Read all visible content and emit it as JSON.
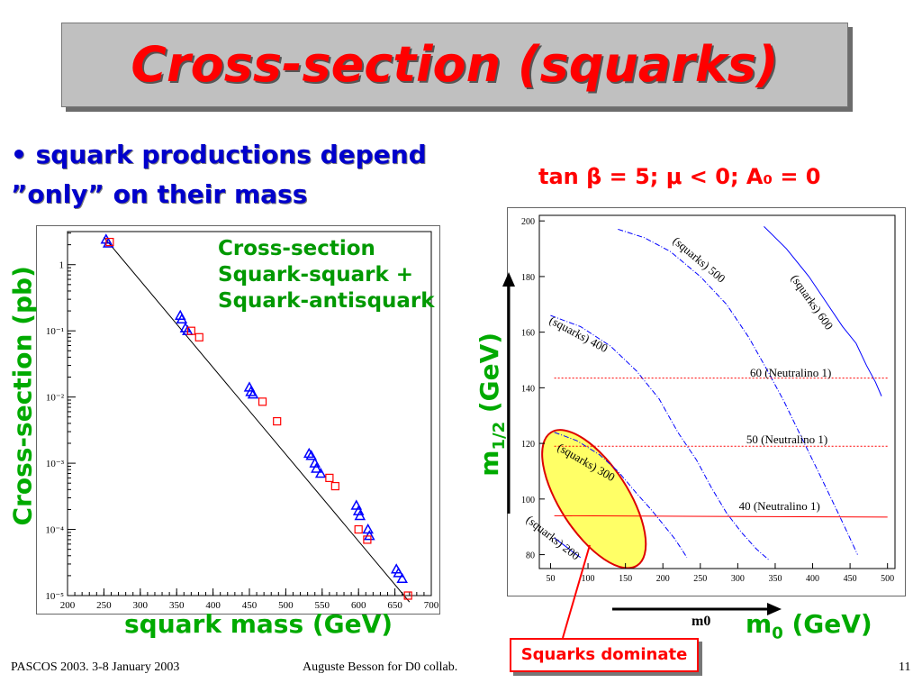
{
  "slide": {
    "title": "Cross-section (squarks)",
    "bullet_line1": "• squark productions depend",
    "bullet_line2": "”only” on their mass",
    "params": "tan β = 5; μ < 0; A₀ = 0",
    "left_legend": [
      "Cross-section",
      "Squark-squark +",
      "Squark-antisquark"
    ],
    "left_ylabel": "Cross-section (pb)",
    "left_xlabel": "squark mass (GeV)",
    "right_ylabel": "m1/2 (GeV)",
    "right_xlabel_small": "m0",
    "right_xlabel_big": "m0 (GeV)",
    "callout": "Squarks dominate",
    "footer_left": "PASCOS 2003. 3-8 January 2003",
    "footer_center": "Auguste Besson for D0 collab.",
    "page_number": "11"
  },
  "colors": {
    "title": "#ff0000",
    "bullet": "#0000cc",
    "legend": "#009900",
    "squark_points": "#0000ff",
    "antisquark_points": "#ff0000",
    "ellipse_fill": "#ffff66"
  },
  "chart_data": [
    {
      "type": "scatter",
      "xlim": [
        200,
        700
      ],
      "ylim_log": [
        -5,
        0.5
      ],
      "x_ticks": [
        200,
        250,
        300,
        350,
        400,
        450,
        500,
        550,
        600,
        650,
        700
      ],
      "y_ticks": [
        {
          "exp": 0,
          "label": "1"
        },
        {
          "exp": -1,
          "label": "10⁻¹"
        },
        {
          "exp": -2,
          "label": "10⁻²"
        },
        {
          "exp": -3,
          "label": "10⁻³"
        },
        {
          "exp": -4,
          "label": "10⁻⁴"
        },
        {
          "exp": -5,
          "label": "10⁻⁵"
        }
      ],
      "fit_line": [
        [
          250,
          2.6
        ],
        [
          670,
          8e-06
        ]
      ],
      "series": [
        {
          "marker": "triangle",
          "points": [
            [
              253,
              2.4
            ],
            [
              256,
              2.1
            ],
            [
              355,
              0.17
            ],
            [
              357,
              0.15
            ],
            [
              362,
              0.11
            ],
            [
              365,
              0.1
            ],
            [
              450,
              0.014
            ],
            [
              452,
              0.012
            ],
            [
              455,
              0.011
            ],
            [
              532,
              0.0014
            ],
            [
              535,
              0.0013
            ],
            [
              540,
              0.001
            ],
            [
              542,
              0.00083
            ],
            [
              548,
              0.0007
            ],
            [
              597,
              0.00023
            ],
            [
              600,
              0.00019
            ],
            [
              602,
              0.00016
            ],
            [
              613,
              0.0001
            ],
            [
              615,
              8e-05
            ],
            [
              652,
              2.5e-05
            ],
            [
              655,
              2.2e-05
            ],
            [
              660,
              1.8e-05
            ]
          ]
        },
        {
          "marker": "square",
          "points": [
            [
              258,
              2.2
            ],
            [
              370,
              0.1
            ],
            [
              381,
              0.08
            ],
            [
              468,
              0.0085
            ],
            [
              488,
              0.0043
            ],
            [
              560,
              0.0006
            ],
            [
              568,
              0.00045
            ],
            [
              600,
              0.0001
            ],
            [
              612,
              7e-05
            ],
            [
              668,
              1e-05
            ]
          ]
        }
      ]
    },
    {
      "type": "line",
      "xlim": [
        35,
        510
      ],
      "ylim": [
        75,
        202
      ],
      "x_ticks": [
        50,
        100,
        150,
        200,
        250,
        300,
        350,
        400,
        450,
        500
      ],
      "y_ticks": [
        80,
        100,
        120,
        140,
        160,
        180,
        200
      ],
      "series": [
        {
          "name": "(squarks) 600",
          "style": "solid",
          "points": [
            [
              335,
              198
            ],
            [
              365,
              190
            ],
            [
              395,
              180
            ],
            [
              420,
              170
            ],
            [
              440,
              162
            ],
            [
              458,
              156
            ],
            [
              472,
              148
            ],
            [
              484,
              142
            ],
            [
              492,
              137
            ]
          ]
        },
        {
          "name": "(squarks) 500",
          "style": "dashdot",
          "points": [
            [
              140,
              197
            ],
            [
              175,
              194
            ],
            [
              210,
              189
            ],
            [
              250,
              180
            ],
            [
              285,
              170
            ],
            [
              315,
              158
            ],
            [
              340,
              146
            ],
            [
              362,
              135
            ],
            [
              380,
              125
            ],
            [
              400,
              114
            ],
            [
              418,
              104
            ],
            [
              434,
              95
            ],
            [
              448,
              87
            ],
            [
              460,
              80
            ]
          ]
        },
        {
          "name": "(squarks) 400",
          "style": "dashdot",
          "points": [
            [
              50,
              166
            ],
            [
              90,
              162
            ],
            [
              130,
              155
            ],
            [
              165,
              146
            ],
            [
              195,
              136
            ],
            [
              220,
              124
            ],
            [
              245,
              114
            ],
            [
              265,
              104
            ],
            [
              285,
              95
            ],
            [
              305,
              88
            ],
            [
              325,
              82
            ],
            [
              342,
              78
            ]
          ]
        },
        {
          "name": "(squarks) 300",
          "style": "dashdot",
          "points": [
            [
              55,
              124
            ],
            [
              85,
              121
            ],
            [
              115,
              116
            ],
            [
              140,
              110
            ],
            [
              165,
              102
            ],
            [
              185,
              96
            ],
            [
              200,
              91
            ],
            [
              215,
              86
            ],
            [
              225,
              82
            ],
            [
              232,
              79
            ]
          ]
        },
        {
          "name": "(squarks) 200",
          "style": "solid",
          "points": [
            [
              55,
              86
            ],
            [
              70,
              83
            ],
            [
              82,
              80.5
            ],
            [
              90,
              79
            ]
          ]
        },
        {
          "name": "60 (Neutralino 1)",
          "style": "dotted",
          "points": [
            [
              55,
              143.5
            ],
            [
              500,
              143.5
            ]
          ]
        },
        {
          "name": "50 (Neutralino 1)",
          "style": "dotted",
          "points": [
            [
              55,
              119
            ],
            [
              500,
              119
            ]
          ]
        },
        {
          "name": "40 (Neutralino 1)",
          "style": "solid",
          "points": [
            [
              55,
              94
            ],
            [
              500,
              93.5
            ]
          ]
        }
      ],
      "labels": [
        {
          "text": "(squarks) 600"
        },
        {
          "text": "(squarks) 500"
        },
        {
          "text": "(squarks) 400"
        },
        {
          "text": "(squarks) 300"
        },
        {
          "text": "(squarks) 200"
        },
        {
          "text": "60 (Neutralino 1)"
        },
        {
          "text": "50 (Neutralino 1)"
        },
        {
          "text": "40 (Neutralino 1)"
        }
      ]
    }
  ]
}
